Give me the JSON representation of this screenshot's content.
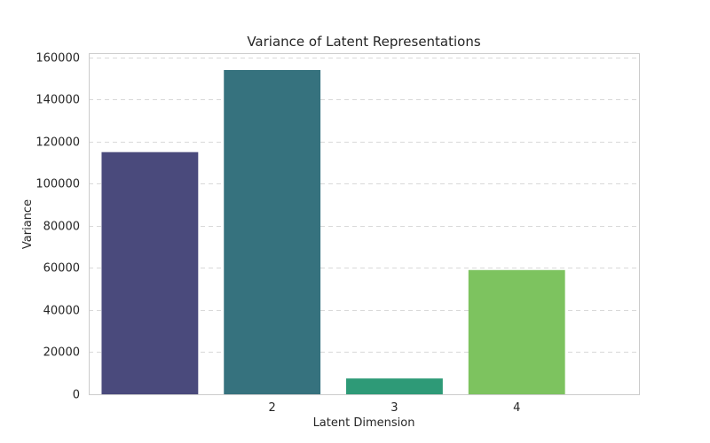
{
  "chart_data": {
    "type": "bar",
    "title": "Variance of Latent Representations",
    "xlabel": "Latent Dimension",
    "ylabel": "Variance",
    "categories": [
      "",
      "2",
      "3",
      "4"
    ],
    "values": [
      115000,
      154000,
      7500,
      59000
    ],
    "colors": [
      "#4a4a7c",
      "#36727e",
      "#2e9a77",
      "#7dc35f"
    ],
    "ylim": [
      0,
      162000
    ],
    "yticks": [
      0,
      20000,
      40000,
      60000,
      80000,
      100000,
      120000,
      140000,
      160000
    ],
    "grid": true,
    "xlim_slots": 4.5
  }
}
